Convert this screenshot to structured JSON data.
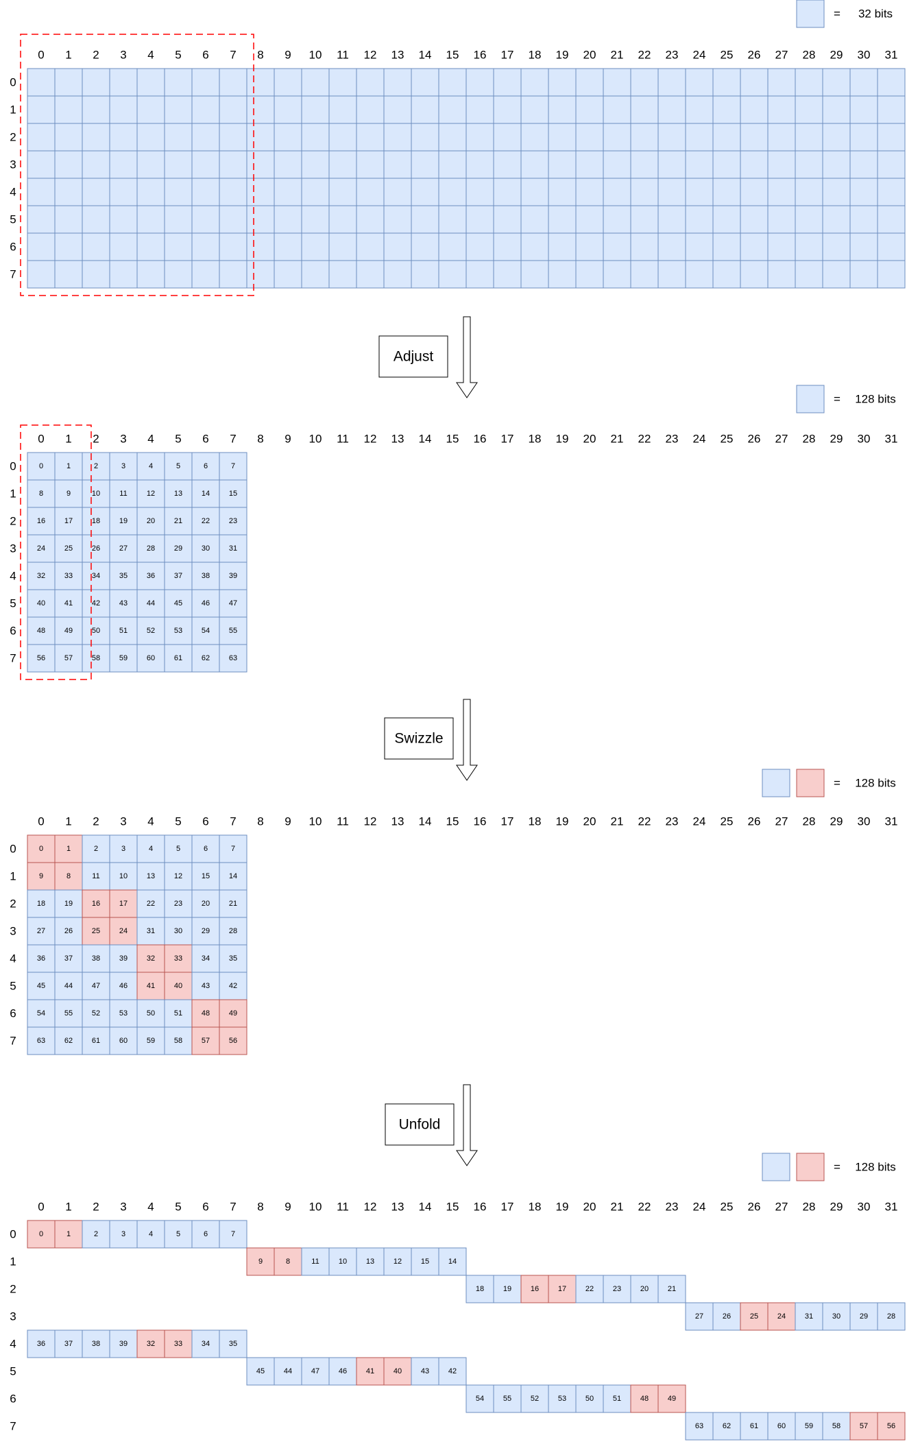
{
  "legend_blocks": [
    {
      "label": "32 bits",
      "swatches": [
        "blue"
      ]
    },
    {
      "label": "128 bits",
      "swatches": [
        "blue"
      ]
    },
    {
      "label": "128 bits",
      "swatches": [
        "blue",
        "red"
      ]
    },
    {
      "label": "128 bits",
      "swatches": [
        "blue",
        "red"
      ]
    }
  ],
  "legend_equals": "=",
  "column_headers": [
    "0",
    "1",
    "2",
    "3",
    "4",
    "5",
    "6",
    "7",
    "8",
    "9",
    "10",
    "11",
    "12",
    "13",
    "14",
    "15",
    "16",
    "17",
    "18",
    "19",
    "20",
    "21",
    "22",
    "23",
    "24",
    "25",
    "26",
    "27",
    "28",
    "29",
    "30",
    "31"
  ],
  "row_headers": [
    "0",
    "1",
    "2",
    "3",
    "4",
    "5",
    "6",
    "7"
  ],
  "steps": [
    {
      "label": "Adjust"
    },
    {
      "label": "Swizzle"
    },
    {
      "label": "Unfold"
    }
  ],
  "adjusted_grid": [
    [
      0,
      1,
      2,
      3,
      4,
      5,
      6,
      7
    ],
    [
      8,
      9,
      10,
      11,
      12,
      13,
      14,
      15
    ],
    [
      16,
      17,
      18,
      19,
      20,
      21,
      22,
      23
    ],
    [
      24,
      25,
      26,
      27,
      28,
      29,
      30,
      31
    ],
    [
      32,
      33,
      34,
      35,
      36,
      37,
      38,
      39
    ],
    [
      40,
      41,
      42,
      43,
      44,
      45,
      46,
      47
    ],
    [
      48,
      49,
      50,
      51,
      52,
      53,
      54,
      55
    ],
    [
      56,
      57,
      58,
      59,
      60,
      61,
      62,
      63
    ]
  ],
  "swizzled_grid": [
    [
      0,
      1,
      2,
      3,
      4,
      5,
      6,
      7
    ],
    [
      9,
      8,
      11,
      10,
      13,
      12,
      15,
      14
    ],
    [
      18,
      19,
      16,
      17,
      22,
      23,
      20,
      21
    ],
    [
      27,
      26,
      25,
      24,
      31,
      30,
      29,
      28
    ],
    [
      36,
      37,
      38,
      39,
      32,
      33,
      34,
      35
    ],
    [
      45,
      44,
      47,
      46,
      41,
      40,
      43,
      42
    ],
    [
      54,
      55,
      52,
      53,
      50,
      51,
      48,
      49
    ],
    [
      63,
      62,
      61,
      60,
      59,
      58,
      57,
      56
    ]
  ],
  "highlighted_values": [
    0,
    1,
    8,
    9,
    16,
    17,
    24,
    25,
    32,
    33,
    40,
    41,
    48,
    49,
    56,
    57
  ],
  "colors": {
    "blue_fill": "#dae8fc",
    "blue_stroke": "#6c8ebf",
    "red_fill": "#f8cecc",
    "red_stroke": "#b85450",
    "dashed_outline": "#ff0000",
    "text": "#000000"
  }
}
